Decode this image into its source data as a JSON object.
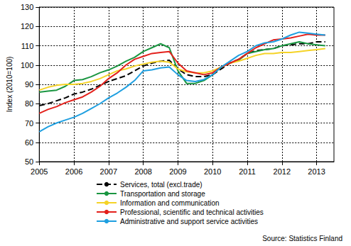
{
  "chart_data": {
    "type": "line",
    "y_label": "Index (2010=100)",
    "annotations": [
      "Source: Statistics Finland"
    ],
    "x": [
      2005,
      2005.25,
      2005.5,
      2005.75,
      2006,
      2006.25,
      2006.5,
      2006.75,
      2007,
      2007.25,
      2007.5,
      2007.75,
      2008,
      2008.25,
      2008.5,
      2008.75,
      2009,
      2009.25,
      2009.5,
      2009.75,
      2010,
      2010.25,
      2010.5,
      2010.75,
      2011,
      2011.25,
      2011.5,
      2011.75,
      2012,
      2012.25,
      2012.5,
      2012.75,
      2013,
      2013.25
    ],
    "xlim": [
      2005,
      2013.5
    ],
    "xticks": [
      2005,
      2006,
      2007,
      2008,
      2009,
      2010,
      2011,
      2012,
      2013
    ],
    "ylim": [
      50,
      130
    ],
    "yticks": [
      50,
      60,
      70,
      80,
      90,
      100,
      110,
      120,
      130
    ],
    "grid": true,
    "legend": "bottom",
    "series": [
      {
        "name": "Services, total (excl.trade)",
        "color": "#000000",
        "line_style": "dashed",
        "values": [
          79,
          80,
          81.5,
          83,
          85,
          86,
          87.5,
          89.5,
          91.5,
          93,
          94.5,
          97,
          99.5,
          101,
          102,
          102.5,
          98,
          95,
          94,
          94,
          95,
          98,
          101,
          103,
          106,
          107.5,
          108,
          108.5,
          110,
          110.5,
          111,
          111,
          112,
          112
        ]
      },
      {
        "name": "Transportation and storage",
        "color": "#1a9641",
        "line_style": "solid",
        "values": [
          86,
          86.5,
          87,
          89,
          92,
          92.5,
          94,
          96,
          97.5,
          99.5,
          102,
          104,
          107,
          109,
          111,
          109,
          97,
          90.5,
          90.5,
          92,
          95,
          99,
          101,
          102.5,
          106,
          107,
          108,
          108.5,
          110,
          111,
          112,
          111,
          110.5,
          110
        ]
      },
      {
        "name": "Information and communication",
        "color": "#f5d327",
        "line_style": "solid",
        "values": [
          87,
          88.5,
          89.5,
          90,
          90,
          90.5,
          91.5,
          93,
          95,
          97,
          98,
          99.5,
          100.5,
          101.5,
          102,
          101.5,
          98,
          96.5,
          96,
          96,
          97,
          99,
          101,
          102,
          103.5,
          105,
          106,
          106,
          106.5,
          106.5,
          107,
          107.5,
          108,
          108.5
        ]
      },
      {
        "name": "Professional, scientific and technical activities",
        "color": "#e3201b",
        "line_style": "solid",
        "values": [
          75,
          77,
          78.5,
          80.5,
          82,
          83.5,
          86,
          89,
          93,
          96,
          100,
          103,
          104.5,
          106,
          106.5,
          107,
          101,
          97,
          96,
          95,
          96,
          99,
          101,
          103,
          106,
          109,
          111,
          113,
          113.5,
          114,
          115,
          116,
          115.5,
          115.5
        ]
      },
      {
        "name": "Administrative and support service activities",
        "color": "#1e9fe0",
        "line_style": "solid",
        "values": [
          65.5,
          68,
          70,
          71.5,
          73,
          75,
          77.5,
          80,
          83,
          85.5,
          88.5,
          92,
          97,
          97.5,
          98.5,
          99,
          95,
          92,
          91.5,
          92.5,
          95,
          99,
          102,
          105,
          107,
          110,
          111.5,
          112,
          113.5,
          115.5,
          117,
          116.5,
          116,
          115.5
        ]
      }
    ]
  }
}
